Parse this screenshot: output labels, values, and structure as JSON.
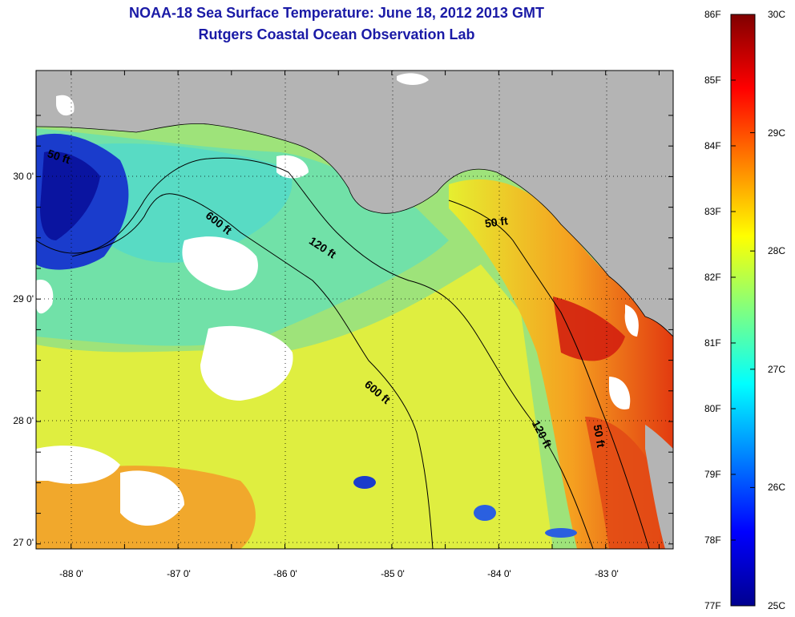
{
  "title": {
    "line1": "NOAA-18 Sea Surface Temperature:  June 18, 2012 2013 GMT",
    "line2": "Rutgers Coastal Ocean Observation Lab"
  },
  "map": {
    "lon_labels": [
      "-88 0'",
      "-87 0'",
      "-86 0'",
      "-85 0'",
      "-84 0'",
      "-83 0'"
    ],
    "lat_labels": [
      "30 0'",
      "29 0'",
      "28 0'",
      "27 0'"
    ],
    "contour_labels": [
      {
        "id": "c600a",
        "text": "600 ft"
      },
      {
        "id": "c120a",
        "text": "120 ft"
      },
      {
        "id": "c50a",
        "text": "50 ft"
      },
      {
        "id": "c600b",
        "text": "600 ft"
      },
      {
        "id": "c120b",
        "text": "120 ft"
      },
      {
        "id": "c50b",
        "text": "50 ft"
      },
      {
        "id": "c50c",
        "text": "50 ft"
      }
    ],
    "colors": {
      "land": "#b4b4b4",
      "cloud": "#ffffff",
      "contour": "#000000"
    }
  },
  "colorbar": {
    "f_labels": [
      "86F",
      "85F",
      "84F",
      "83F",
      "82F",
      "81F",
      "80F",
      "79F",
      "78F",
      "77F"
    ],
    "c_labels": [
      "30C",
      "29C",
      "28C",
      "27C",
      "26C",
      "25C"
    ],
    "f_range": [
      77,
      86
    ],
    "c_range": [
      25,
      30
    ],
    "colormap": [
      "#00008f",
      "#0000ff",
      "#0080ff",
      "#00ffff",
      "#80ff80",
      "#ffff00",
      "#ff8000",
      "#ff0000",
      "#800000"
    ]
  }
}
